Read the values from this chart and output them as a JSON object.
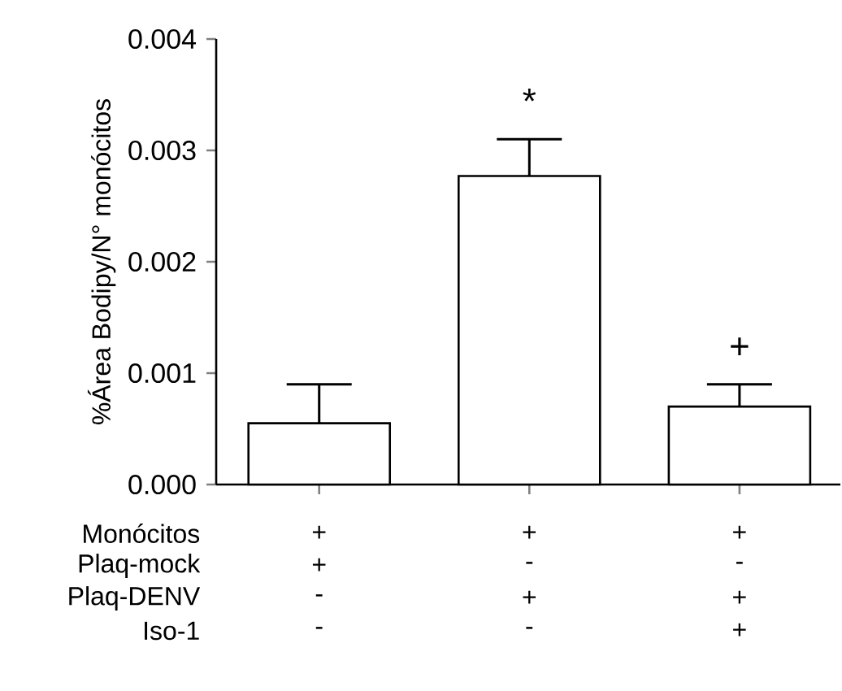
{
  "chart_data": {
    "type": "bar",
    "ylabel": "%Área Bodipy/N° monócitos",
    "categories": [
      null,
      null,
      null
    ],
    "values": [
      0.00055,
      0.00277,
      0.0007
    ],
    "errors": [
      [
        0.00055,
        0.0009
      ],
      [
        0.00277,
        0.0031
      ],
      [
        0.0007,
        0.0009
      ]
    ],
    "color": "#ffffff",
    "ylim": [
      0,
      0.004
    ],
    "yticks": [
      {
        "value": 0,
        "label": "0.000"
      },
      {
        "value": 0.001,
        "label": "0.001"
      },
      {
        "value": 0.002,
        "label": "0.002"
      },
      {
        "value": 0.003,
        "label": "0.003"
      },
      {
        "value": 0.004,
        "label": "0.004"
      }
    ],
    "grid": false,
    "annotations": [
      "*",
      "+",
      "Monócitos",
      "Plaq-mock",
      "Plaq-DENV",
      "Iso-1",
      "+",
      "+",
      "+",
      "+",
      "-",
      "-",
      "-",
      "+",
      "+",
      "-",
      "-",
      "+"
    ]
  }
}
